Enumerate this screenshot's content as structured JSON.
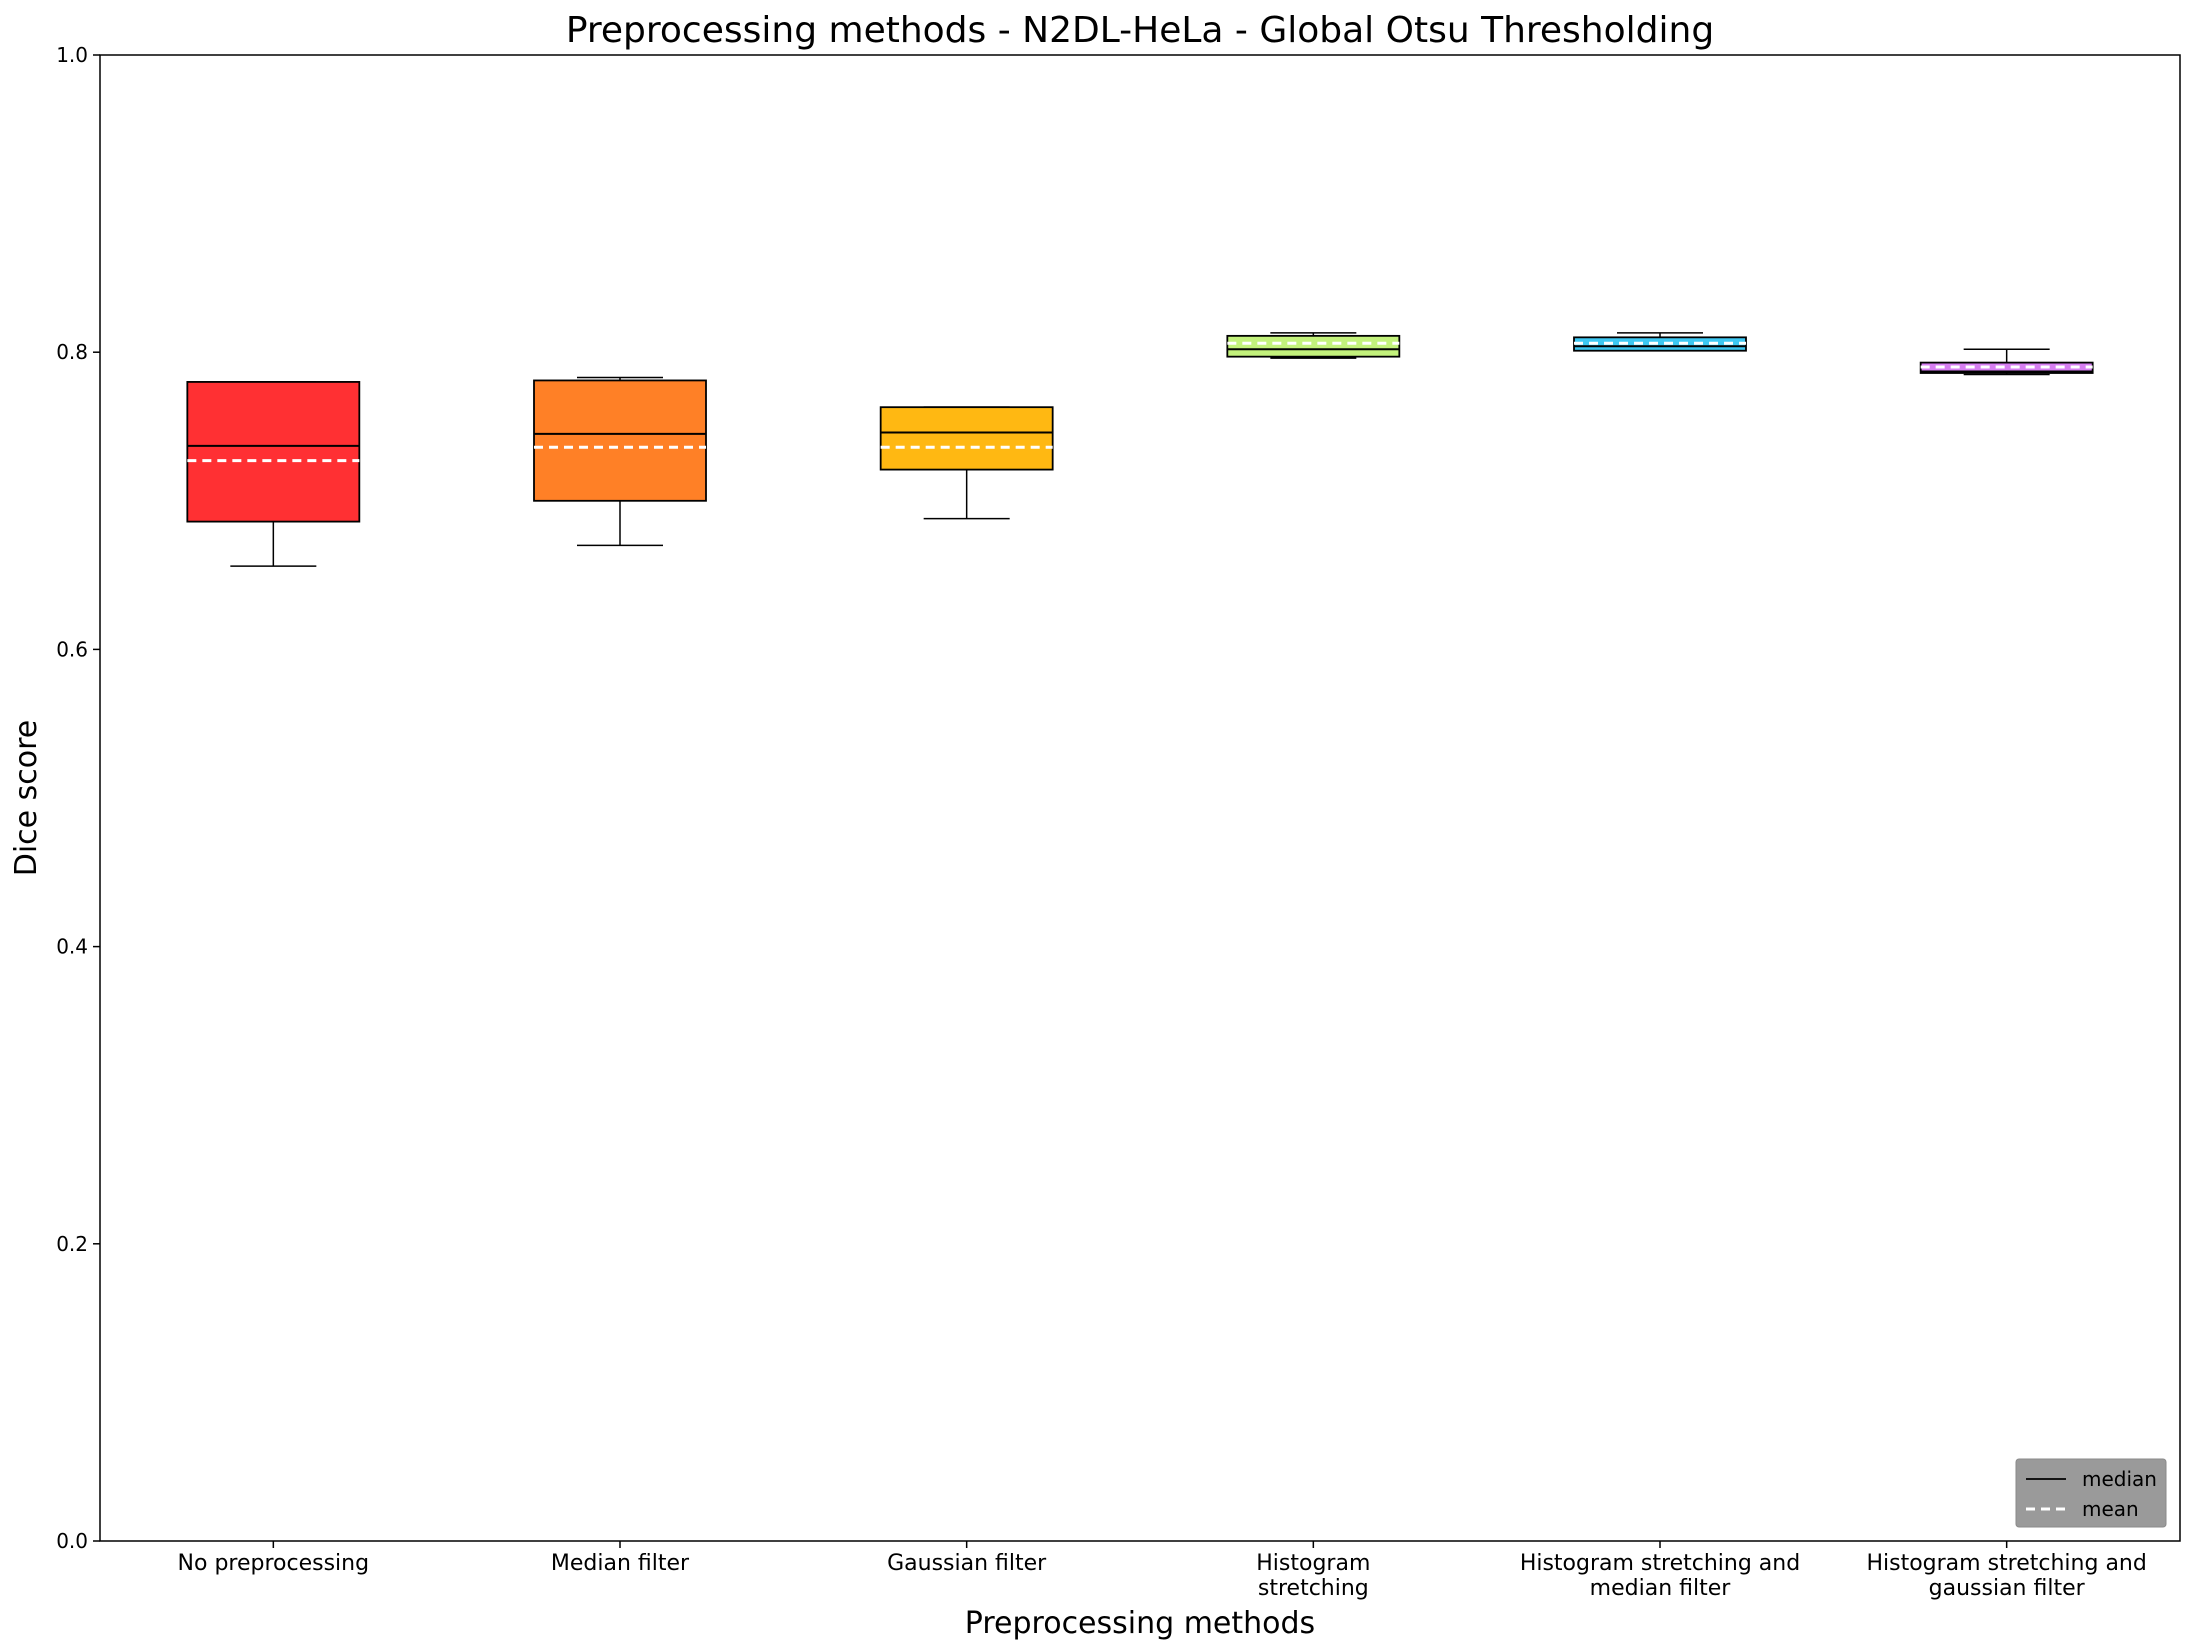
{
  "chart_data": {
    "type": "box",
    "title": "Preprocessing methods - N2DL-HeLa - Global Otsu Thresholding",
    "xlabel": "Preprocessing methods",
    "ylabel": "Dice score",
    "ylim": [
      0,
      1.0
    ],
    "yticks": [
      "0.0",
      "0.2",
      "0.4",
      "0.6",
      "0.8",
      "1.0"
    ],
    "categories": [
      [
        "No preprocessing"
      ],
      [
        "Median filter"
      ],
      [
        "Gaussian filter"
      ],
      [
        "Histogram",
        "stretching"
      ],
      [
        "Histogram stretching and",
        "median filter"
      ],
      [
        "Histogram stretching and",
        "gaussian filter"
      ]
    ],
    "boxes": [
      {
        "whisker_low": 0.656,
        "q1": 0.686,
        "median": 0.737,
        "mean": 0.727,
        "q3": 0.78,
        "whisker_high": 0.78,
        "color": "#ff3033"
      },
      {
        "whisker_low": 0.67,
        "q1": 0.7,
        "median": 0.745,
        "mean": 0.736,
        "q3": 0.781,
        "whisker_high": 0.783,
        "color": "#ff8026"
      },
      {
        "whisker_low": 0.688,
        "q1": 0.721,
        "median": 0.746,
        "mean": 0.736,
        "q3": 0.763,
        "whisker_high": 0.763,
        "color": "#ffb812"
      },
      {
        "whisker_low": 0.796,
        "q1": 0.797,
        "median": 0.802,
        "mean": 0.806,
        "q3": 0.811,
        "whisker_high": 0.813,
        "color": "#c3f27c"
      },
      {
        "whisker_low": 0.801,
        "q1": 0.801,
        "median": 0.804,
        "mean": 0.806,
        "q3": 0.81,
        "whisker_high": 0.813,
        "color": "#3ec8f2"
      },
      {
        "whisker_low": 0.785,
        "q1": 0.786,
        "median": 0.787,
        "mean": 0.79,
        "q3": 0.793,
        "whisker_high": 0.802,
        "color": "#d67ef2"
      }
    ],
    "legend": {
      "position": "lower-right",
      "entries": [
        {
          "label": "median",
          "style": "solid",
          "color": "#000000"
        },
        {
          "label": "mean",
          "style": "dashed",
          "color": "#ffffff"
        }
      ],
      "background": "#9a9a9a"
    },
    "grid": false
  }
}
